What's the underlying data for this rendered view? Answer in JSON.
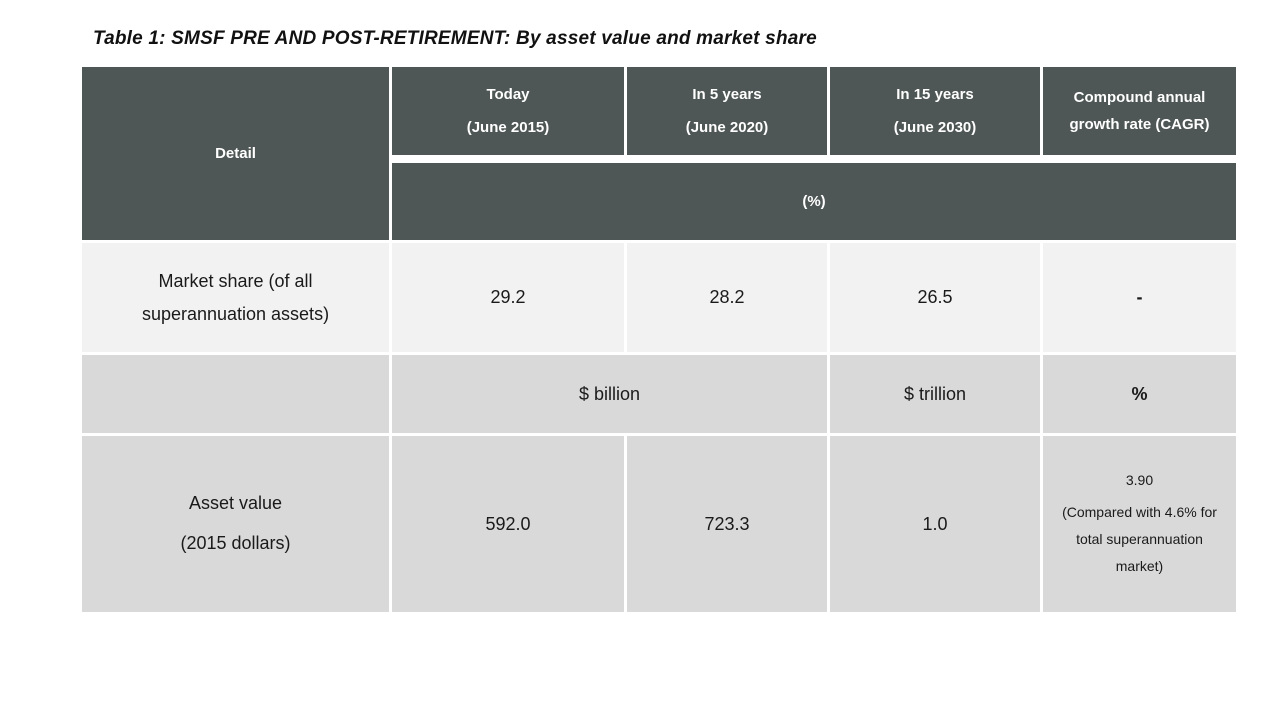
{
  "title": "Table 1: SMSF PRE AND POST-RETIREMENT: By asset value and market share",
  "table": {
    "detail_header": "Detail",
    "columns": [
      {
        "line1": "Today",
        "line2": "(June 2015)"
      },
      {
        "line1": "In 5 years",
        "line2": "(June 2020)"
      },
      {
        "line1": "In 15 years",
        "line2": "(June 2030)"
      },
      {
        "label": "Compound annual growth rate (CAGR)"
      }
    ],
    "percent_band_label": "(%)",
    "market_share_row": {
      "label": "Market share (of all superannuation assets)",
      "values": [
        "29.2",
        "28.2",
        "26.5",
        "-"
      ]
    },
    "units_row": {
      "billion_label": "$ billion",
      "trillion_label": "$ trillion",
      "percent_label": "%"
    },
    "asset_value_row": {
      "label_line1": "Asset value",
      "label_line2": "(2015 dollars)",
      "values": [
        "592.0",
        "723.3",
        "1.0"
      ],
      "cagr_value": "3.90",
      "cagr_note": "(Compared with 4.6% for total superannuation market)"
    }
  },
  "colors": {
    "header_bg": "#4e5755",
    "light_row_bg": "#f2f2f2",
    "gray_row_bg": "#d9d9d9",
    "header_text": "#ffffff",
    "body_text": "#1a1a1a"
  }
}
